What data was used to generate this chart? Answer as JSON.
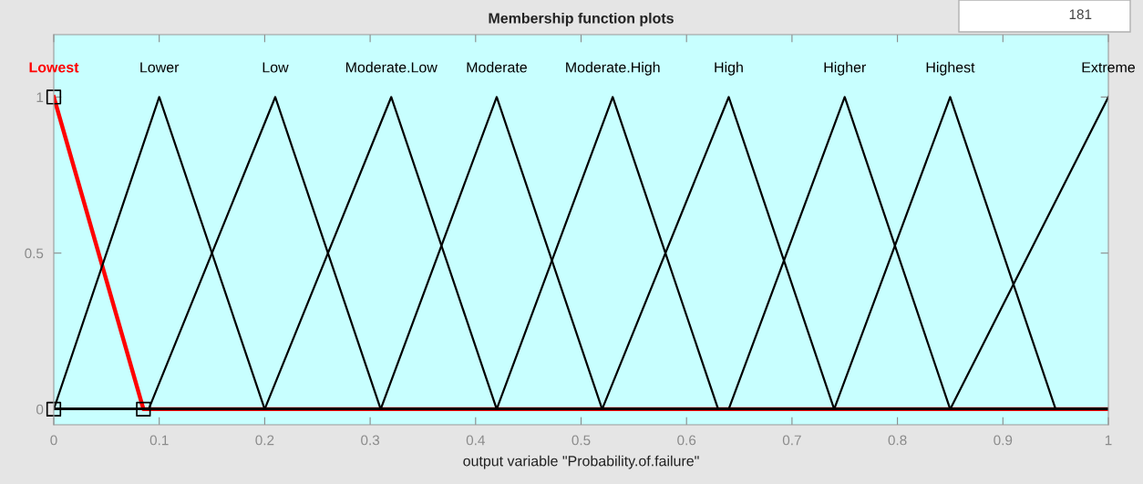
{
  "chart_data": {
    "type": "line",
    "title": "Membership function plots",
    "xlabel": "output variable \"Probability.of.failure\"",
    "xlim": [
      0,
      1
    ],
    "ylim": [
      -0.05,
      1.2
    ],
    "xticks": [
      0,
      0.1,
      0.2,
      0.3,
      0.4,
      0.5,
      0.6,
      0.7,
      0.8,
      0.9,
      1
    ],
    "yticks": [
      0,
      0.5,
      1
    ],
    "grid": false,
    "legend": false,
    "marker": "none",
    "line_style": "solid",
    "annotations": [
      "181"
    ],
    "series": [
      {
        "name": "Lowest",
        "color": "#ff0000",
        "x": [
          0,
          0.085,
          1
        ],
        "values": [
          1,
          0,
          0
        ]
      },
      {
        "name": "Lower",
        "color": "#000000",
        "x": [
          0,
          0.1,
          0.2,
          1
        ],
        "values": [
          0,
          1,
          0,
          0
        ]
      },
      {
        "name": "Low",
        "color": "#000000",
        "x": [
          0,
          0.09,
          0.21,
          0.31,
          1
        ],
        "values": [
          0,
          0,
          1,
          0,
          0
        ]
      },
      {
        "name": "Moderate.Low",
        "color": "#000000",
        "x": [
          0,
          0.2,
          0.32,
          0.42,
          1
        ],
        "values": [
          0,
          0,
          1,
          0,
          0
        ]
      },
      {
        "name": "Moderate",
        "color": "#000000",
        "x": [
          0,
          0.31,
          0.42,
          0.52,
          1
        ],
        "values": [
          0,
          0,
          1,
          0,
          0
        ]
      },
      {
        "name": "Moderate.High",
        "color": "#000000",
        "x": [
          0,
          0.42,
          0.53,
          0.63,
          1
        ],
        "values": [
          0,
          0,
          1,
          0,
          0
        ]
      },
      {
        "name": "High",
        "color": "#000000",
        "x": [
          0,
          0.52,
          0.64,
          0.74,
          1
        ],
        "values": [
          0,
          0,
          1,
          0,
          0
        ]
      },
      {
        "name": "Higher",
        "color": "#000000",
        "x": [
          0,
          0.64,
          0.75,
          0.85,
          1
        ],
        "values": [
          0,
          0,
          1,
          0,
          0
        ]
      },
      {
        "name": "Highest",
        "color": "#000000",
        "x": [
          0,
          0.74,
          0.85,
          0.95,
          1
        ],
        "values": [
          0,
          0,
          1,
          0,
          0
        ]
      },
      {
        "name": "Extreme",
        "color": "#000000",
        "x": [
          0,
          0.85,
          1
        ],
        "values": [
          0,
          0,
          1
        ]
      },
      {
        "type": "scatter",
        "color": "#000000",
        "marker": "square",
        "x": [
          0,
          0,
          0.085
        ],
        "values": [
          1,
          0,
          0
        ]
      }
    ]
  }
}
